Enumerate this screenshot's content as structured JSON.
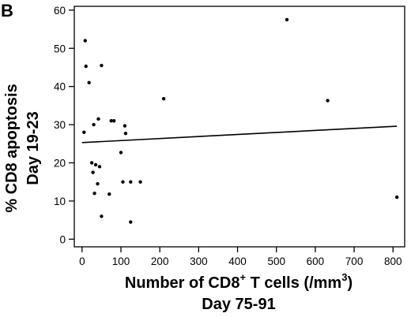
{
  "chart_data": {
    "type": "scatter",
    "panel_label": "B",
    "title": "",
    "xlabel_line1_prefix": "Number of CD8",
    "xlabel_line1_sup": "+",
    "xlabel_line1_suffix": " T cells (/mm",
    "xlabel_line1_sup2": "3",
    "xlabel_line1_end": ")",
    "xlabel_line2": "Day 75-91",
    "ylabel_line1": "% CD8 apoptosis",
    "ylabel_line2": "Day 19-23",
    "xlim": [
      -20,
      830
    ],
    "ylim": [
      -2,
      61
    ],
    "xticks": [
      0,
      100,
      200,
      300,
      400,
      500,
      600,
      700,
      800
    ],
    "yticks": [
      0,
      10,
      20,
      30,
      40,
      50,
      60
    ],
    "grid": false,
    "points": [
      {
        "x": 8,
        "y": 52
      },
      {
        "x": 10,
        "y": 45.3
      },
      {
        "x": 18,
        "y": 41
      },
      {
        "x": 5,
        "y": 28
      },
      {
        "x": 50,
        "y": 45.5
      },
      {
        "x": 30,
        "y": 30
      },
      {
        "x": 42,
        "y": 31.5
      },
      {
        "x": 75,
        "y": 31
      },
      {
        "x": 82,
        "y": 31
      },
      {
        "x": 110,
        "y": 29.7
      },
      {
        "x": 112,
        "y": 27.7
      },
      {
        "x": 100,
        "y": 22.7
      },
      {
        "x": 25,
        "y": 20
      },
      {
        "x": 35,
        "y": 19.5
      },
      {
        "x": 45,
        "y": 19
      },
      {
        "x": 28,
        "y": 17.5
      },
      {
        "x": 40,
        "y": 14.5
      },
      {
        "x": 105,
        "y": 15
      },
      {
        "x": 125,
        "y": 15
      },
      {
        "x": 150,
        "y": 15
      },
      {
        "x": 32,
        "y": 12
      },
      {
        "x": 70,
        "y": 11.8
      },
      {
        "x": 50,
        "y": 6
      },
      {
        "x": 125,
        "y": 4.5
      },
      {
        "x": 210,
        "y": 36.8
      },
      {
        "x": 527,
        "y": 57.5
      },
      {
        "x": 632,
        "y": 36.3
      },
      {
        "x": 810,
        "y": 11
      }
    ],
    "trend_line": {
      "x": [
        0,
        810
      ],
      "y": [
        25.3,
        29.6
      ]
    }
  }
}
